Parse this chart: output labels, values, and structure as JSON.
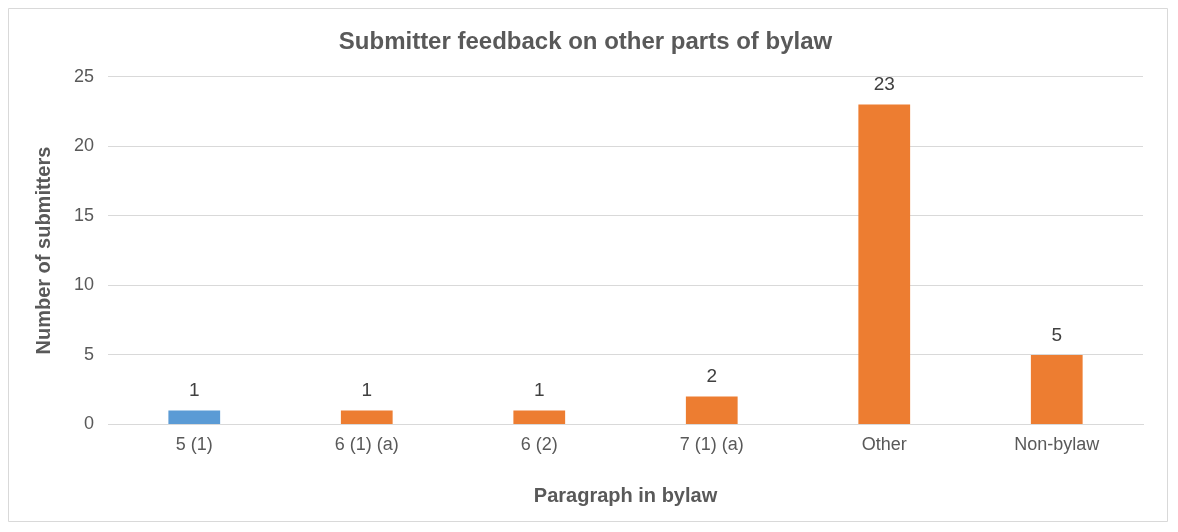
{
  "chart_data": {
    "type": "bar",
    "title": "Submitter feedback on other parts of bylaw",
    "xlabel": "Paragraph in bylaw",
    "ylabel": "Number of submitters",
    "categories": [
      "5 (1)",
      "6 (1) (a)",
      "6 (2)",
      "7 (1) (a)",
      "Other",
      "Non-bylaw"
    ],
    "values": [
      1,
      1,
      1,
      2,
      23,
      5
    ],
    "colors": [
      "#5b9bd5",
      "#ed7d31",
      "#ed7d31",
      "#ed7d31",
      "#ed7d31",
      "#ed7d31"
    ],
    "ylim": [
      0,
      25
    ],
    "yticks": [
      0,
      5,
      10,
      15,
      20,
      25
    ],
    "grid": "y",
    "data_labels": true,
    "legend": false
  }
}
